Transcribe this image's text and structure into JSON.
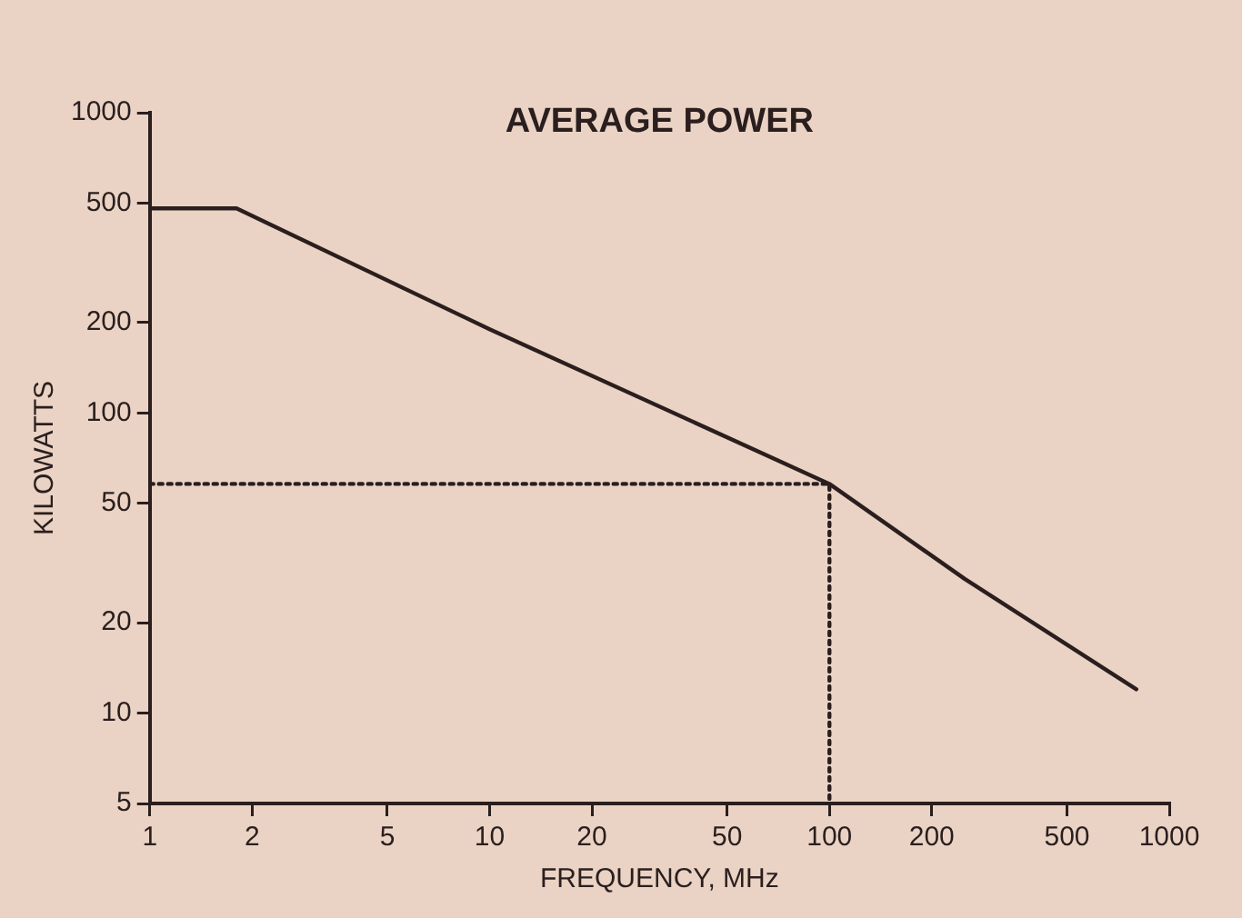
{
  "chart_data": {
    "type": "line",
    "title": "AVERAGE POWER",
    "xlabel": "FREQUENCY, MHz",
    "ylabel": "KILOWATTS",
    "log": "xy",
    "xlim": [
      1,
      1000
    ],
    "ylim": [
      5,
      1000
    ],
    "xticks": [
      1,
      2,
      5,
      10,
      20,
      50,
      100,
      200,
      500,
      1000
    ],
    "yticks": [
      5,
      10,
      20,
      50,
      100,
      200,
      500,
      1000
    ],
    "grid": false,
    "legend": false,
    "marker": "none",
    "series": [
      {
        "color": "#2a1e1e",
        "line_style": "solid",
        "x": [
          1,
          1.8,
          10,
          100,
          250,
          800
        ],
        "values": [
          480,
          480,
          190,
          58,
          28,
          12
        ]
      },
      {
        "color": "#2a1e1e",
        "line_style": "dotted",
        "x": [
          1,
          100,
          100
        ],
        "values": [
          58,
          58,
          5
        ]
      }
    ]
  }
}
